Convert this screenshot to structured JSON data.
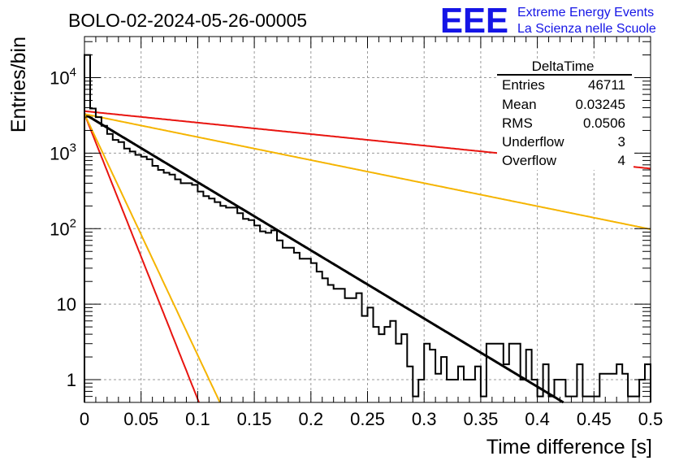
{
  "chart_data": {
    "type": "histogram",
    "title": "BOLO-02-2024-05-26-00005",
    "logo": {
      "mark": "EEE",
      "line1": "Extreme Energy Events",
      "line2": "La Scienza nelle Scuole"
    },
    "xlabel": "Time difference [s]",
    "ylabel": "Entries/bin",
    "xlim": [
      0,
      0.5
    ],
    "ylim": [
      0.5,
      35000
    ],
    "yscale": "log",
    "grid": true,
    "x_ticks": [
      "0",
      "0.05",
      "0.1",
      "0.15",
      "0.2",
      "0.25",
      "0.3",
      "0.35",
      "0.4",
      "0.45",
      "0.5"
    ],
    "y_ticks": [
      {
        "value": 1,
        "base": "1",
        "exp": ""
      },
      {
        "value": 10,
        "base": "10",
        "exp": ""
      },
      {
        "value": 100,
        "base": "10",
        "exp": "2"
      },
      {
        "value": 1000,
        "base": "10",
        "exp": "3"
      },
      {
        "value": 10000,
        "base": "10",
        "exp": "4"
      }
    ],
    "stats": {
      "title": "DeltaTime",
      "rows": [
        {
          "label": "Entries",
          "value": "46711"
        },
        {
          "label": "Mean",
          "value": "0.03245"
        },
        {
          "label": "RMS",
          "value": "0.0506"
        },
        {
          "label": "Underflow",
          "value": "3"
        },
        {
          "label": "Overflow",
          "value": "4"
        }
      ]
    },
    "histogram": {
      "bin_width": 0.005,
      "counts": [
        20000,
        3900,
        3000,
        2300,
        1800,
        1500,
        1400,
        1150,
        1050,
        950,
        900,
        830,
        680,
        600,
        550,
        520,
        450,
        400,
        400,
        380,
        310,
        270,
        250,
        225,
        200,
        190,
        190,
        160,
        135,
        130,
        110,
        92,
        88,
        95,
        70,
        56,
        56,
        48,
        40,
        40,
        35,
        27,
        22,
        18,
        16,
        16,
        12,
        12,
        14,
        7,
        9,
        5,
        4,
        5,
        6,
        3,
        4,
        1.5,
        0.6,
        1,
        3,
        2.5,
        1.2,
        2,
        1,
        1,
        1.5,
        1,
        1,
        1.5,
        0.6,
        3,
        3,
        3,
        1.6,
        3,
        3,
        1,
        2.5,
        1,
        0.6,
        1.6,
        0.6,
        1,
        1,
        0.6,
        0.6,
        1.6,
        0.6,
        0.6,
        0.6,
        1.2,
        1.2,
        1.2,
        1.6,
        1.2,
        0.6,
        0.6,
        1,
        1.6
      ],
      "color": "#000000"
    },
    "series": [
      {
        "type": "exponential",
        "y0": 3300,
        "tau": 0.0481,
        "color": "#000000"
      },
      {
        "type": "exponential",
        "y0": 3600,
        "tau": 0.2856,
        "color": "#e8140f"
      },
      {
        "type": "exponential",
        "y0": 3300,
        "tau": 0.1423,
        "color": "#f5b400"
      },
      {
        "type": "exponential",
        "y0": 3300,
        "tau": 0.0115,
        "color": "#e8140f"
      },
      {
        "type": "exponential",
        "y0": 3300,
        "tau": 0.0136,
        "color": "#f5b400"
      }
    ],
    "colors": {
      "logo": "#1515e6",
      "axis": "#000000",
      "grid": "#9a9a9a"
    }
  }
}
